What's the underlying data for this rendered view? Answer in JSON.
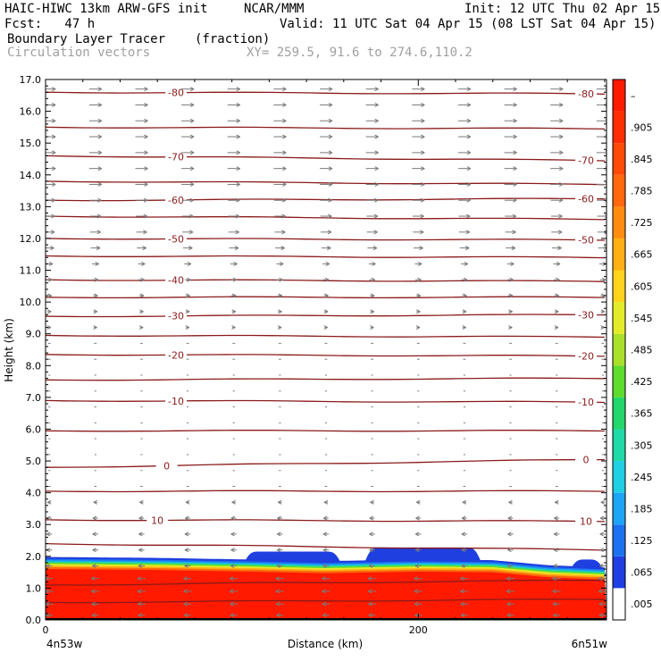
{
  "header": {
    "model": "HAIC-HIWC 13km ARW-GFS init",
    "org": "NCAR/MMM",
    "init": "Init: 12 UTC Thu 02 Apr 15",
    "fcst": "Fcst:   47 h",
    "valid": "Valid: 11 UTC Sat 04 Apr 15 (08 LST Sat 04 Apr 15)",
    "field": "Boundary Layer Tracer",
    "units": "(fraction)",
    "overlay": "Circulation vectors",
    "xy": "XY= 259.5, 91.6 to 274.6,110.2"
  },
  "colors": {
    "contour": "#8b1a1a",
    "vector": "#7a7a7a",
    "terrain": "#000000"
  },
  "chart_data": {
    "type": "heatmap",
    "xlabel": "Distance (km)",
    "ylabel": "Height (km)",
    "xlim": [
      0,
      301
    ],
    "ylim": [
      0,
      17
    ],
    "x_ticks": [
      {
        "v": 0,
        "label": "0"
      },
      {
        "v": 200,
        "label": "200"
      }
    ],
    "x_end_labels": {
      "left": "4n53w",
      "right": "6n51w"
    },
    "y_ticks": [
      0,
      1,
      2,
      3,
      4,
      5,
      6,
      7,
      8,
      9,
      10,
      11,
      12,
      13,
      14,
      15,
      16,
      17
    ],
    "y_tick_labels": [
      "0.0",
      "1.0",
      "2.0",
      "3.0",
      "4.0",
      "5.0",
      "6.0",
      "7.0",
      "8.0",
      "9.0",
      "10.0",
      "11.0",
      "12.0",
      "13.0",
      "14.0",
      "15.0",
      "16.0",
      "17.0"
    ],
    "colorbar": {
      "labels": [
        ".005",
        ".065",
        ".125",
        ".185",
        ".245",
        ".305",
        ".365",
        ".425",
        ".485",
        ".545",
        ".605",
        ".665",
        ".725",
        ".785",
        ".845",
        ".905",
        "–"
      ],
      "colors": [
        "#ffffff",
        "#1f3fe0",
        "#1c72ee",
        "#1ea4f5",
        "#21cfe3",
        "#20d9a6",
        "#22d66a",
        "#5edb2d",
        "#a9e02a",
        "#e4eb2a",
        "#ffd21c",
        "#ffb014",
        "#ff8c10",
        "#ff680c",
        "#ff4a08",
        "#ff2d04",
        "#ff1a00"
      ]
    },
    "tracer_layer": {
      "base_value": 0.95,
      "top_profile": [
        {
          "x": 0,
          "y": 1.98
        },
        {
          "x": 60,
          "y": 1.95
        },
        {
          "x": 110,
          "y": 1.9
        },
        {
          "x": 150,
          "y": 1.85
        },
        {
          "x": 200,
          "y": 1.9
        },
        {
          "x": 240,
          "y": 1.88
        },
        {
          "x": 270,
          "y": 1.72
        },
        {
          "x": 301,
          "y": 1.65
        }
      ],
      "blue_bumps": [
        {
          "x0": 105,
          "x1": 160,
          "top": 2.15
        },
        {
          "x0": 170,
          "x1": 235,
          "top": 2.28
        },
        {
          "x0": 280,
          "x1": 301,
          "top": 1.9
        }
      ]
    },
    "contours": [
      {
        "label": "-80",
        "levels": [
          16.6,
          16.55
        ],
        "label_x": [
          70,
          290
        ]
      },
      {
        "label": "",
        "levels": [
          15.5,
          15.45
        ],
        "label_x": []
      },
      {
        "label": "-70",
        "levels": [
          14.6,
          14.45
        ],
        "label_x": [
          70,
          290
        ]
      },
      {
        "label": "",
        "levels": [
          13.8,
          13.7
        ],
        "label_x": []
      },
      {
        "label": "-60",
        "levels": [
          13.2,
          13.25
        ],
        "label_x": [
          70,
          290
        ]
      },
      {
        "label": "",
        "levels": [
          12.7,
          12.6
        ],
        "label_x": []
      },
      {
        "label": "-50",
        "levels": [
          12.0,
          11.95
        ],
        "label_x": [
          70,
          290
        ]
      },
      {
        "label": "",
        "levels": [
          11.45,
          11.4
        ],
        "label_x": []
      },
      {
        "label": "-40",
        "levels": [
          10.7,
          10.65
        ],
        "label_x": [
          70
        ]
      },
      {
        "label": "",
        "levels": [
          10.15,
          10.15
        ],
        "label_x": []
      },
      {
        "label": "-30",
        "levels": [
          9.55,
          9.6
        ],
        "label_x": [
          70,
          290
        ]
      },
      {
        "label": "",
        "levels": [
          8.95,
          8.9
        ],
        "label_x": []
      },
      {
        "label": "-20",
        "levels": [
          8.35,
          8.3
        ],
        "label_x": [
          70,
          290
        ]
      },
      {
        "label": "",
        "levels": [
          7.55,
          7.6
        ],
        "label_x": []
      },
      {
        "label": "-10",
        "levels": [
          6.9,
          6.85
        ],
        "label_x": [
          70,
          290
        ]
      },
      {
        "label": "",
        "levels": [
          5.95,
          5.95
        ],
        "label_x": []
      },
      {
        "label": "0",
        "levels": [
          4.8,
          5.05
        ],
        "label_x": [
          65,
          290
        ]
      },
      {
        "label": "",
        "levels": [
          4.05,
          4.05
        ],
        "label_x": []
      },
      {
        "label": "10",
        "levels": [
          3.15,
          3.1
        ],
        "label_x": [
          60,
          290
        ]
      },
      {
        "label": "",
        "levels": [
          2.4,
          2.2
        ],
        "label_x": []
      },
      {
        "label": "",
        "levels": [
          1.1,
          1.25
        ],
        "label_x": []
      },
      {
        "label": "",
        "levels": [
          0.55,
          0.65
        ],
        "label_x": []
      }
    ],
    "vector_rows": [
      {
        "y": 16.7,
        "u": 1.0
      },
      {
        "y": 16.2,
        "u": 1.0
      },
      {
        "y": 15.7,
        "u": 1.0
      },
      {
        "y": 15.2,
        "u": 1.0
      },
      {
        "y": 14.7,
        "u": 1.0
      },
      {
        "y": 14.2,
        "u": 1.0
      },
      {
        "y": 13.7,
        "u": 1.0
      },
      {
        "y": 13.2,
        "u": 0.95
      },
      {
        "y": 12.7,
        "u": 0.9
      },
      {
        "y": 12.2,
        "u": 0.85
      },
      {
        "y": 11.7,
        "u": 0.75
      },
      {
        "y": 11.2,
        "u": 0.55
      },
      {
        "y": 10.7,
        "u": 0.45
      },
      {
        "y": 10.2,
        "u": 0.35
      },
      {
        "y": 9.7,
        "u": 0.3
      },
      {
        "y": 9.2,
        "u": 0.25
      },
      {
        "y": 8.7,
        "u": 0.2
      },
      {
        "y": 8.2,
        "u": 0.2
      },
      {
        "y": 7.7,
        "u": 0.15
      },
      {
        "y": 7.2,
        "u": 0.15
      },
      {
        "y": 6.7,
        "u": 0.15
      },
      {
        "y": 6.2,
        "u": 0.15
      },
      {
        "y": 5.7,
        "u": 0.15
      },
      {
        "y": 5.2,
        "u": 0.15
      },
      {
        "y": 4.7,
        "u": -0.15
      },
      {
        "y": 4.2,
        "u": -0.2
      },
      {
        "y": 3.7,
        "u": -0.3
      },
      {
        "y": 3.2,
        "u": -0.4
      },
      {
        "y": 2.7,
        "u": -0.45
      },
      {
        "y": 2.2,
        "u": -0.45
      },
      {
        "y": 1.7,
        "u": -0.5
      },
      {
        "y": 1.3,
        "u": -0.65
      },
      {
        "y": 0.9,
        "u": -0.65
      },
      {
        "y": 0.5,
        "u": -0.6
      },
      {
        "y": 0.15,
        "u": -0.55
      }
    ]
  }
}
